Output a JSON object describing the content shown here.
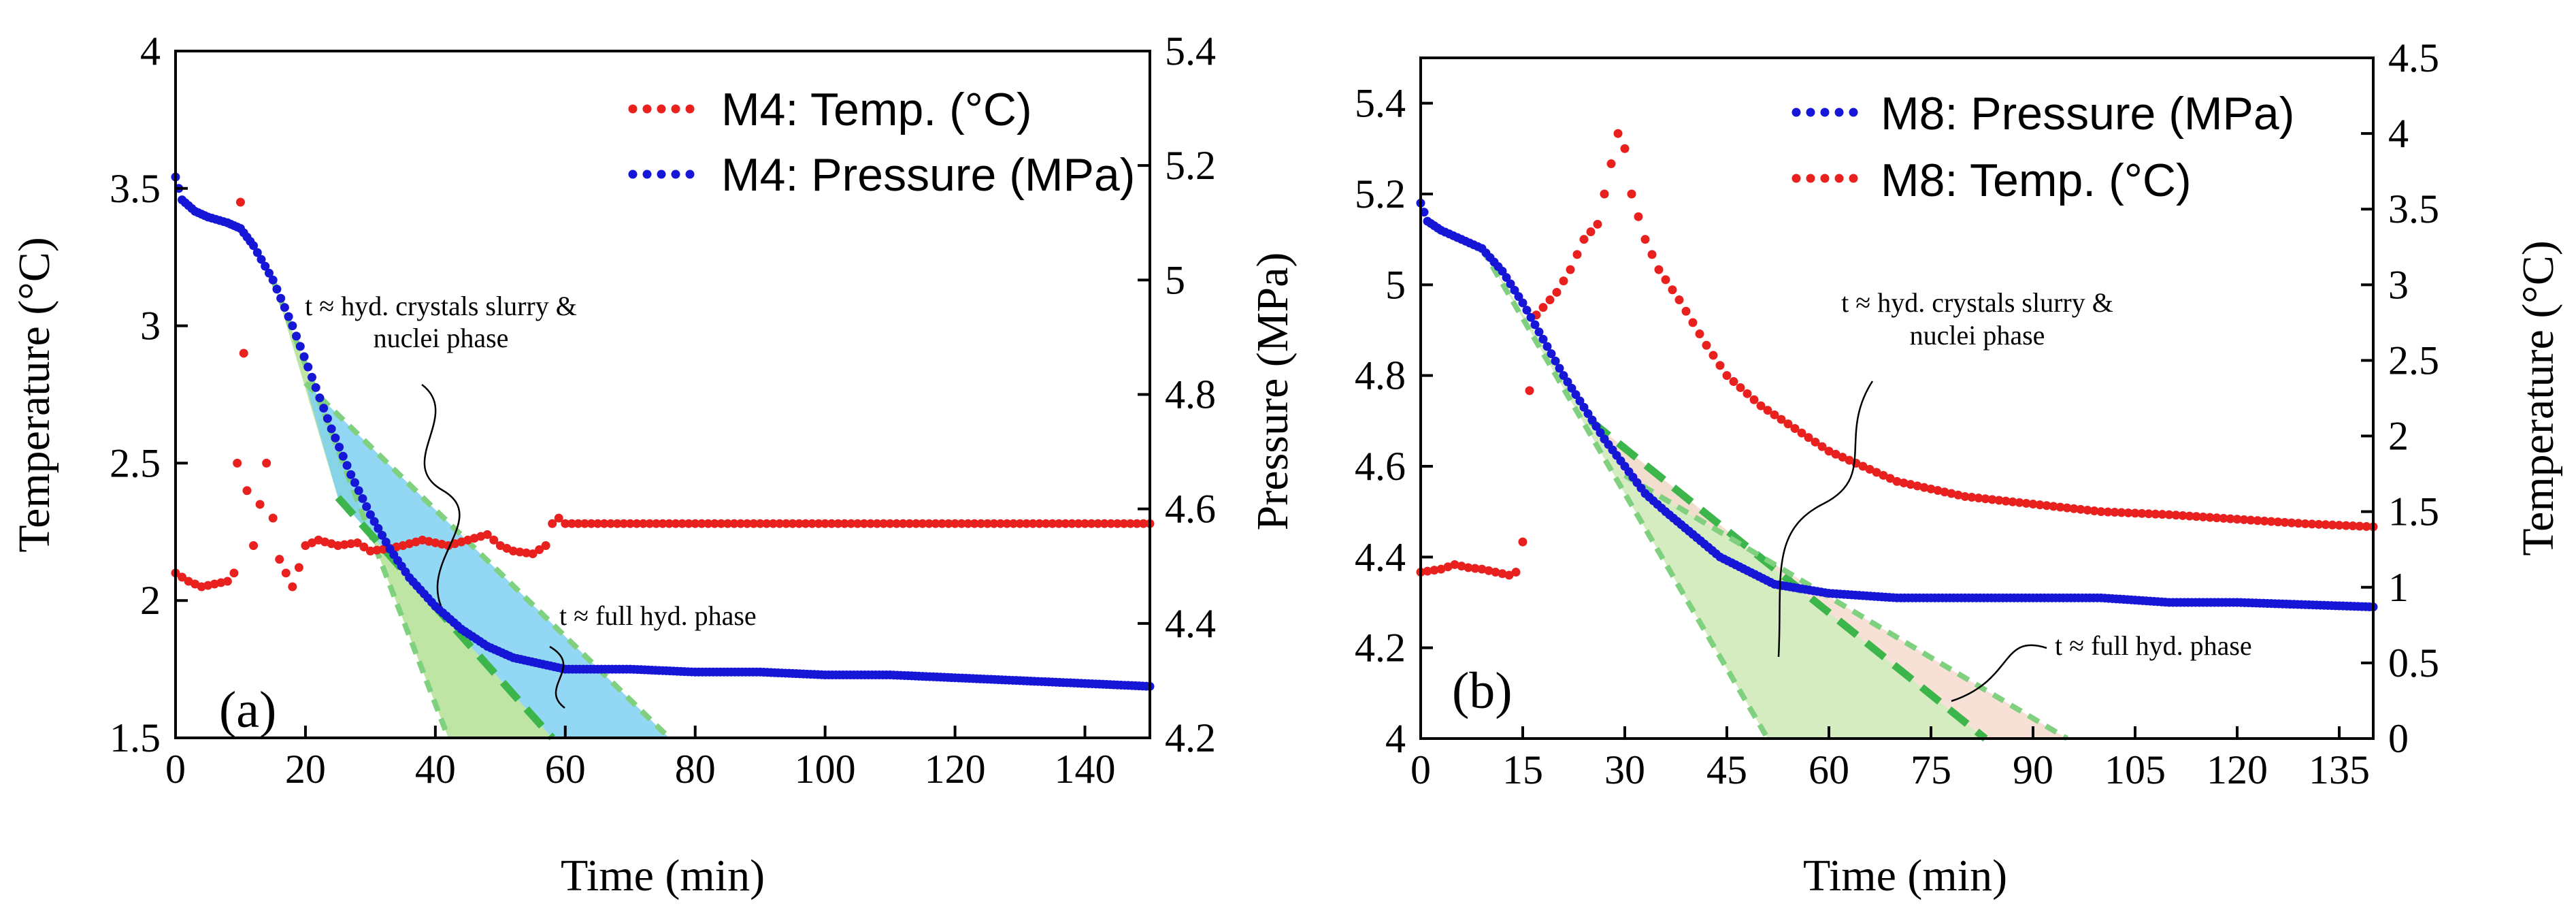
{
  "chart_data": [
    {
      "panel": "(a)",
      "type": "scatter",
      "xlabel": "Time (min)",
      "ylabel_left": "Temperature (°C)",
      "ylabel_right": "",
      "xlim": [
        0,
        150
      ],
      "ylim_left": [
        1.5,
        4
      ],
      "ylim_right": [
        4.2,
        5.4
      ],
      "xticks": [
        "0",
        "20",
        "40",
        "60",
        "80",
        "100",
        "120",
        "140"
      ],
      "yticks_left": [
        "1.5",
        "2",
        "2.5",
        "3",
        "3.5",
        "4"
      ],
      "yticks_right": [
        "4.2",
        "4.4",
        "4.6",
        "4.8",
        "5",
        "5.2",
        "5.4"
      ],
      "legend": [
        "M4: Temp. (°C)",
        "M4: Pressure (MPa)"
      ],
      "legend_position": "top-right",
      "annotations": [
        "t ≈ hyd. crystals slurry &",
        "nuclei phase",
        "t ≈ full hyd. phase"
      ],
      "colors": {
        "temp": "#e8201e",
        "pressure": "#1616d6",
        "fit": "#3cb54a",
        "fit_light": "#7fd17f",
        "fill_green": "#b7e29a",
        "fill_blue": "#7fd1f3"
      },
      "series": [
        {
          "name": "M4: Temp. (°C)",
          "axis": "left",
          "points": [
            [
              0,
              2.1
            ],
            [
              2,
              2.07
            ],
            [
              4,
              2.05
            ],
            [
              6,
              2.06
            ],
            [
              8,
              2.07
            ],
            [
              9,
              2.1
            ],
            [
              9.5,
              2.5
            ],
            [
              10,
              3.45
            ],
            [
              10.5,
              2.9
            ],
            [
              11,
              2.4
            ],
            [
              12,
              2.2
            ],
            [
              13,
              2.35
            ],
            [
              14,
              2.5
            ],
            [
              15,
              2.3
            ],
            [
              16,
              2.15
            ],
            [
              17,
              2.1
            ],
            [
              18,
              2.05
            ],
            [
              19,
              2.12
            ],
            [
              20,
              2.2
            ],
            [
              22,
              2.22
            ],
            [
              25,
              2.2
            ],
            [
              28,
              2.21
            ],
            [
              30,
              2.18
            ],
            [
              33,
              2.19
            ],
            [
              35,
              2.2
            ],
            [
              38,
              2.22
            ],
            [
              40,
              2.21
            ],
            [
              42,
              2.2
            ],
            [
              45,
              2.22
            ],
            [
              48,
              2.24
            ],
            [
              50,
              2.2
            ],
            [
              52,
              2.18
            ],
            [
              55,
              2.17
            ],
            [
              57,
              2.2
            ],
            [
              58,
              2.28
            ],
            [
              59,
              2.3
            ],
            [
              60,
              2.28
            ],
            [
              70,
              2.28
            ],
            [
              80,
              2.28
            ],
            [
              90,
              2.28
            ],
            [
              100,
              2.28
            ],
            [
              110,
              2.28
            ],
            [
              120,
              2.28
            ],
            [
              130,
              2.28
            ],
            [
              140,
              2.28
            ],
            [
              150,
              2.28
            ]
          ]
        },
        {
          "name": "M4: Pressure (MPa)",
          "axis": "right",
          "points": [
            [
              0,
              5.18
            ],
            [
              1,
              5.14
            ],
            [
              3,
              5.12
            ],
            [
              5,
              5.11
            ],
            [
              8,
              5.1
            ],
            [
              10,
              5.09
            ],
            [
              12,
              5.06
            ],
            [
              15,
              5.0
            ],
            [
              18,
              4.92
            ],
            [
              21,
              4.83
            ],
            [
              24,
              4.74
            ],
            [
              27,
              4.66
            ],
            [
              30,
              4.59
            ],
            [
              33,
              4.53
            ],
            [
              36,
              4.48
            ],
            [
              40,
              4.43
            ],
            [
              44,
              4.39
            ],
            [
              48,
              4.36
            ],
            [
              52,
              4.34
            ],
            [
              56,
              4.33
            ],
            [
              60,
              4.32
            ],
            [
              70,
              4.32
            ],
            [
              80,
              4.315
            ],
            [
              90,
              4.315
            ],
            [
              100,
              4.31
            ],
            [
              110,
              4.31
            ],
            [
              120,
              4.305
            ],
            [
              130,
              4.3
            ],
            [
              140,
              4.295
            ],
            [
              150,
              4.29
            ]
          ]
        }
      ],
      "fit_lines": [
        {
          "from": [
            15,
            5.0
          ],
          "to": [
            42,
            4.2
          ]
        },
        {
          "from": [
            25,
            4.62
          ],
          "to": [
            58,
            4.2
          ]
        },
        {
          "from": [
            20,
            4.82
          ],
          "to": [
            76,
            4.2
          ]
        }
      ]
    },
    {
      "panel": "(b)",
      "type": "scatter",
      "xlabel": "Time (min)",
      "ylabel_left": "Pressure (MPa)",
      "ylabel_right": "Temperature (°C)",
      "xlim": [
        0,
        140
      ],
      "ylim_left": [
        4,
        5.5
      ],
      "ylim_right": [
        0,
        4.5
      ],
      "xticks": [
        "0",
        "15",
        "30",
        "45",
        "60",
        "75",
        "90",
        "105",
        "120",
        "135"
      ],
      "yticks_left": [
        "4",
        "4.2",
        "4.4",
        "4.6",
        "4.8",
        "5",
        "5.2",
        "5.4"
      ],
      "yticks_right": [
        "0",
        "0.5",
        "1",
        "1.5",
        "2",
        "2.5",
        "3",
        "3.5",
        "4",
        "4.5"
      ],
      "legend": [
        "M8: Pressure (MPa)",
        "M8: Temp. (°C)"
      ],
      "legend_position": "top-right",
      "annotations": [
        "t ≈ hyd. crystals slurry &",
        "nuclei phase",
        "t ≈ full hyd. phase"
      ],
      "colors": {
        "temp": "#e8201e",
        "pressure": "#1616d6",
        "fit": "#3cb54a",
        "fit_light": "#7fd17f",
        "fill_green": "#cfeab9",
        "fill_pink": "#f6dcd0"
      },
      "series": [
        {
          "name": "M8: Pressure (MPa)",
          "axis": "left",
          "points": [
            [
              0,
              5.18
            ],
            [
              1,
              5.14
            ],
            [
              3,
              5.12
            ],
            [
              6,
              5.1
            ],
            [
              9,
              5.08
            ],
            [
              12,
              5.03
            ],
            [
              15,
              4.96
            ],
            [
              18,
              4.88
            ],
            [
              21,
              4.8
            ],
            [
              24,
              4.73
            ],
            [
              27,
              4.66
            ],
            [
              30,
              4.6
            ],
            [
              33,
              4.54
            ],
            [
              36,
              4.5
            ],
            [
              40,
              4.45
            ],
            [
              44,
              4.4
            ],
            [
              48,
              4.37
            ],
            [
              52,
              4.34
            ],
            [
              56,
              4.33
            ],
            [
              60,
              4.32
            ],
            [
              70,
              4.31
            ],
            [
              80,
              4.31
            ],
            [
              90,
              4.31
            ],
            [
              100,
              4.31
            ],
            [
              110,
              4.3
            ],
            [
              120,
              4.3
            ],
            [
              130,
              4.295
            ],
            [
              140,
              4.29
            ]
          ]
        },
        {
          "name": "M8: Temp. (°C)",
          "axis": "right",
          "points": [
            [
              0,
              1.1
            ],
            [
              3,
              1.12
            ],
            [
              5,
              1.15
            ],
            [
              7,
              1.13
            ],
            [
              9,
              1.12
            ],
            [
              11,
              1.1
            ],
            [
              13,
              1.08
            ],
            [
              14,
              1.1
            ],
            [
              15,
              1.3
            ],
            [
              16,
              2.3
            ],
            [
              17,
              2.8
            ],
            [
              18,
              2.85
            ],
            [
              20,
              2.95
            ],
            [
              22,
              3.1
            ],
            [
              24,
              3.3
            ],
            [
              26,
              3.4
            ],
            [
              27,
              3.6
            ],
            [
              28,
              3.8
            ],
            [
              29,
              4.0
            ],
            [
              30,
              3.9
            ],
            [
              31,
              3.6
            ],
            [
              33,
              3.3
            ],
            [
              35,
              3.1
            ],
            [
              38,
              2.9
            ],
            [
              42,
              2.6
            ],
            [
              45,
              2.4
            ],
            [
              50,
              2.2
            ],
            [
              55,
              2.05
            ],
            [
              60,
              1.9
            ],
            [
              65,
              1.8
            ],
            [
              70,
              1.7
            ],
            [
              75,
              1.65
            ],
            [
              80,
              1.6
            ],
            [
              90,
              1.55
            ],
            [
              100,
              1.5
            ],
            [
              110,
              1.48
            ],
            [
              120,
              1.45
            ],
            [
              130,
              1.42
            ],
            [
              140,
              1.4
            ]
          ]
        }
      ],
      "fit_lines": [
        {
          "from": [
            9,
            5.08
          ],
          "to": [
            51,
            4.0
          ]
        },
        {
          "from": [
            25,
            4.7
          ],
          "to": [
            83,
            4.0
          ]
        },
        {
          "from": [
            30,
            4.58
          ],
          "to": [
            95,
            4.0
          ]
        }
      ]
    }
  ]
}
